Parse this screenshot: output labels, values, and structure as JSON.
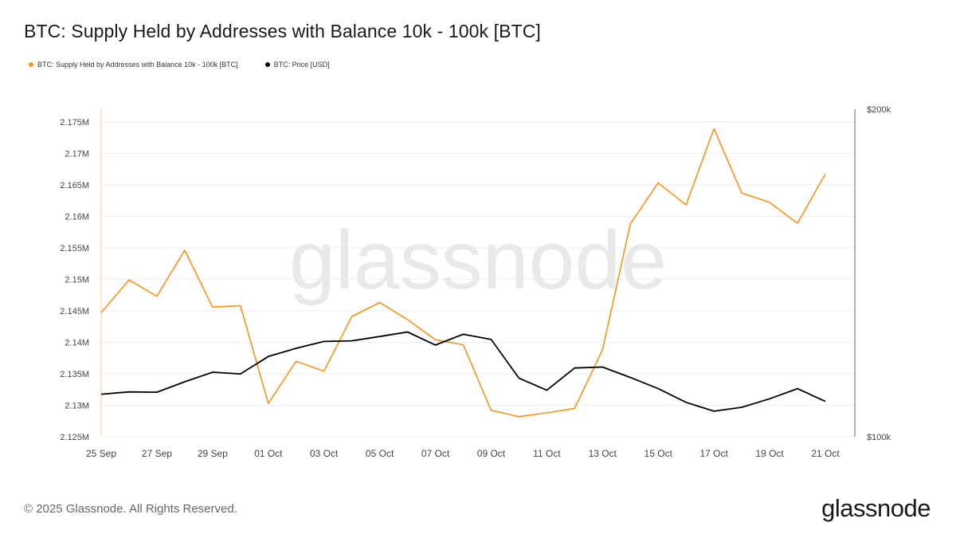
{
  "chart_data": {
    "type": "line",
    "title": "BTC: Supply Held by Addresses with Balance 10k - 100k [BTC]",
    "watermark": "glassnode",
    "x": [
      "25 Sep",
      "26 Sep",
      "27 Sep",
      "28 Sep",
      "29 Sep",
      "30 Sep",
      "01 Oct",
      "02 Oct",
      "03 Oct",
      "04 Oct",
      "05 Oct",
      "06 Oct",
      "07 Oct",
      "08 Oct",
      "09 Oct",
      "10 Oct",
      "11 Oct",
      "12 Oct",
      "13 Oct",
      "14 Oct",
      "15 Oct",
      "16 Oct",
      "17 Oct",
      "18 Oct",
      "19 Oct",
      "20 Oct",
      "21 Oct"
    ],
    "x_tick_labels": [
      "25 Sep",
      "27 Sep",
      "29 Sep",
      "01 Oct",
      "03 Oct",
      "05 Oct",
      "07 Oct",
      "09 Oct",
      "11 Oct",
      "13 Oct",
      "15 Oct",
      "17 Oct",
      "19 Oct",
      "21 Oct"
    ],
    "y_left": {
      "ylim": [
        2125000,
        2177000
      ],
      "ticks": [
        2125000,
        2130000,
        2135000,
        2140000,
        2145000,
        2150000,
        2155000,
        2160000,
        2165000,
        2170000,
        2175000
      ],
      "tick_labels": [
        "2.125M",
        "2.13M",
        "2.135M",
        "2.14M",
        "2.145M",
        "2.15M",
        "2.155M",
        "2.16M",
        "2.165M",
        "2.17M",
        "2.175M"
      ]
    },
    "y_right": {
      "ylim": [
        100000,
        200000
      ],
      "tick_labels": [
        "$200k",
        "$100k"
      ]
    },
    "grid": true,
    "legend": "top-left",
    "series": [
      {
        "name": "BTC: Supply Held by Addresses with Balance 10k - 100k [BTC]",
        "axis": "left",
        "color": "#f7931a",
        "values": [
          2144700,
          2149900,
          2147300,
          2154600,
          2145600,
          2145800,
          2130300,
          2137000,
          2135400,
          2144100,
          2146300,
          2143600,
          2140400,
          2139600,
          2129200,
          2128200,
          2128800,
          2129500,
          2138800,
          2158800,
          2165300,
          2161800,
          2173900,
          2163700,
          2162200,
          2158900,
          2166700
        ]
      },
      {
        "name": "BTC: Price [USD]",
        "axis": "right",
        "color": "#000000",
        "values": [
          113000,
          113700,
          113600,
          116800,
          119700,
          119200,
          124500,
          127000,
          129100,
          129300,
          130600,
          132000,
          128000,
          131300,
          129700,
          117900,
          114200,
          121000,
          121300,
          118100,
          114700,
          110500,
          107800,
          109000,
          111600,
          114700,
          110800
        ]
      }
    ]
  },
  "footer": {
    "copyright": "© 2025 Glassnode. All Rights Reserved.",
    "logo": "glassnode"
  }
}
